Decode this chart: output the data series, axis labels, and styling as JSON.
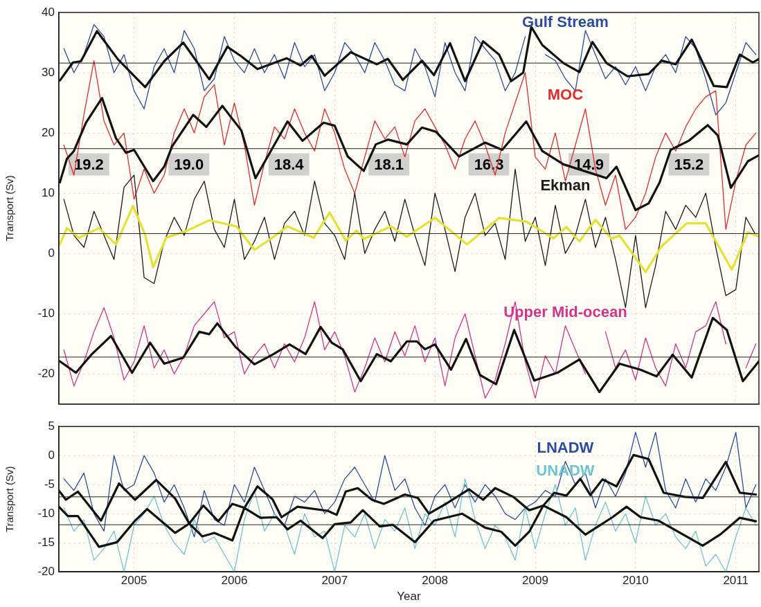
{
  "chart_data": [
    {
      "type": "line",
      "ylabel": "Transport (Sv)",
      "xlim": [
        2004.25,
        2011.23
      ],
      "xticks": [
        {
          "value": 2005,
          "label": null
        },
        {
          "value": 2006,
          "label": null
        },
        {
          "value": 2007,
          "label": null
        },
        {
          "value": 2008,
          "label": null
        },
        {
          "value": 2009,
          "label": null
        },
        {
          "value": 2010,
          "label": null
        },
        {
          "value": 2011,
          "label": null
        }
      ],
      "ylim": [
        -25,
        40
      ],
      "yticks": [
        -20,
        -10,
        0,
        10,
        20,
        30,
        40
      ],
      "tick_labels": "y",
      "grid": true,
      "ref_lines": [
        {
          "axis": "y",
          "value": 31.6
        },
        {
          "axis": "y",
          "value": 17.4
        },
        {
          "axis": "y",
          "value": 3.3
        },
        {
          "axis": "y",
          "value": -17.2
        }
      ],
      "annotations": [
        "19.2",
        "19.0",
        "18.4",
        "18.1",
        "16.3",
        "14.9",
        "15.2"
      ],
      "series": [
        {
          "name": "Gulf Stream",
          "color": "#2b4ba0",
          "x": [
            2004.3,
            2004.4,
            2004.5,
            2004.6,
            2004.7,
            2004.8,
            2004.9,
            2005.0,
            2005.1,
            2005.2,
            2005.3,
            2005.4,
            2005.5,
            2005.6,
            2005.7,
            2005.8,
            2005.9,
            2006.0,
            2006.1,
            2006.2,
            2006.3,
            2006.4,
            2006.5,
            2006.6,
            2006.7,
            2006.8,
            2006.9,
            2007.0,
            2007.1,
            2007.2,
            2007.3,
            2007.4,
            2007.5,
            2007.6,
            2007.7,
            2007.8,
            2007.9,
            2008.0,
            2008.1,
            2008.2,
            2008.3,
            2008.4,
            2008.5,
            2008.6,
            2008.7,
            2008.8,
            2008.9,
            2009.0,
            2009.1,
            2009.2,
            2009.3,
            2009.4,
            2009.5,
            2009.6,
            2009.7,
            2009.8,
            2009.9,
            2010.0,
            2010.1,
            2010.2,
            2010.3,
            2010.4,
            2010.5,
            2010.6,
            2010.7,
            2010.8,
            2010.9,
            2011.0,
            2011.1,
            2011.2
          ],
          "values": [
            34,
            30,
            33,
            38,
            36,
            30,
            33,
            27,
            24,
            31,
            34,
            30,
            37,
            34,
            27,
            29,
            36,
            32,
            30,
            34,
            30,
            33,
            29,
            35,
            31,
            33,
            27,
            30,
            35,
            33,
            30,
            35,
            32,
            28,
            27,
            34,
            31,
            26,
            35,
            30,
            27,
            36,
            34,
            32,
            27,
            30,
            36,
            null,
            33,
            32,
            29,
            27,
            37,
            33,
            29,
            31,
            28,
            31,
            27,
            31,
            33,
            30,
            36,
            34,
            29,
            23,
            25,
            30,
            35,
            33
          ]
        },
        {
          "color": "#111111",
          "x": [
            2004.26,
            2004.39,
            2004.47,
            2004.63,
            2004.84,
            2005.11,
            2005.3,
            2005.49,
            2005.75,
            2005.93,
            2006.07,
            2006.23,
            2006.52,
            2006.66,
            2006.77,
            2006.9,
            2007.16,
            2007.42,
            2007.53,
            2007.68,
            2007.87,
            2007.99,
            2008.15,
            2008.3,
            2008.48,
            2008.64,
            2008.76,
            2008.88,
            2008.96,
            2009.07,
            2009.28,
            2009.44,
            2009.57,
            2009.71,
            2009.92,
            2010.13,
            2010.26,
            2010.4,
            2010.56,
            2010.78,
            2010.91,
            2011.04,
            2011.17,
            2011.23
          ],
          "values": [
            28.7,
            31.7,
            31.9,
            36.9,
            32.2,
            27.6,
            31.9,
            35,
            28.9,
            34.3,
            32.7,
            30.6,
            32.4,
            31.2,
            32.8,
            29.5,
            33.4,
            31.4,
            32.3,
            28.8,
            32,
            29.6,
            34.9,
            28.6,
            35.2,
            33,
            28.6,
            30,
            37.6,
            34.6,
            31.6,
            30.1,
            35.1,
            31.6,
            29.4,
            29.8,
            32,
            31.4,
            35.5,
            27.8,
            27.6,
            33,
            31.7,
            32.3
          ]
        },
        {
          "name": "MOC",
          "color": "#e32b2b",
          "x": [
            2004.3,
            2004.4,
            2004.5,
            2004.6,
            2004.7,
            2004.8,
            2004.9,
            2005.0,
            2005.1,
            2005.2,
            2005.3,
            2005.4,
            2005.5,
            2005.6,
            2005.7,
            2005.8,
            2005.9,
            2006.0,
            2006.1,
            2006.2,
            2006.3,
            2006.4,
            2006.5,
            2006.6,
            2006.7,
            2006.8,
            2006.9,
            2007.0,
            2007.1,
            2007.2,
            2007.3,
            2007.4,
            2007.5,
            2007.6,
            2007.7,
            2007.8,
            2007.9,
            2008.0,
            2008.1,
            2008.2,
            2008.3,
            2008.4,
            2008.5,
            2008.6,
            2008.7,
            2008.8,
            2008.9,
            2009.0,
            2009.1,
            2009.2,
            2009.3,
            2009.4,
            2009.5,
            2009.6,
            2009.7,
            2009.8,
            2009.9,
            2010.0,
            2010.1,
            2010.2,
            2010.3,
            2010.4,
            2010.5,
            2010.6,
            2010.7,
            2010.8,
            2010.9,
            2011.0,
            2011.1,
            2011.2
          ],
          "values": [
            18,
            13,
            23,
            32,
            22,
            18,
            20,
            9,
            14,
            10,
            13,
            20,
            24,
            20,
            26,
            28,
            18,
            25,
            18,
            8,
            15,
            21,
            19,
            24,
            20,
            17,
            24,
            20,
            14,
            10,
            16,
            22,
            19,
            21,
            16,
            22,
            24,
            21,
            18,
            14,
            19,
            22,
            18,
            13,
            20,
            25,
            30,
            16,
            14,
            20,
            12,
            18,
            24,
            14,
            8,
            13,
            4,
            6,
            10,
            16,
            20,
            17,
            21,
            24,
            26,
            27,
            4,
            12,
            18,
            20
          ]
        },
        {
          "color": "#111111",
          "x": [
            2004.26,
            2004.33,
            2004.4,
            2004.52,
            2004.68,
            2004.82,
            2004.92,
            2005.0,
            2005.19,
            2005.3,
            2005.38,
            2005.59,
            2005.72,
            2005.88,
            2006.07,
            2006.21,
            2006.37,
            2006.53,
            2006.68,
            2006.89,
            2007.0,
            2007.13,
            2007.29,
            2007.41,
            2007.53,
            2007.72,
            2007.87,
            2008.01,
            2008.24,
            2008.5,
            2008.67,
            2008.91,
            2009.07,
            2009.28,
            2009.71,
            2009.81,
            2010.0,
            2010.13,
            2010.24,
            2010.35,
            2010.53,
            2010.72,
            2010.82,
            2010.95,
            2011.12,
            2011.23
          ],
          "values": [
            11.8,
            15.7,
            17,
            21.7,
            25.8,
            19.1,
            16.7,
            17.2,
            12,
            14.4,
            17.8,
            23,
            21,
            24.5,
            20.4,
            12.5,
            17.2,
            21.9,
            18.7,
            21.7,
            21.2,
            16.1,
            13.7,
            18.1,
            18.9,
            18.1,
            20.9,
            20.2,
            16.1,
            18.4,
            17.2,
            21.9,
            17,
            14.8,
            12.5,
            14.4,
            7.2,
            8.3,
            11.8,
            17.2,
            18.7,
            21.3,
            19.6,
            10.9,
            15.3,
            16.3
          ]
        },
        {
          "name": "Ekman",
          "color": "#1a1a1a",
          "x": [
            2004.3,
            2004.4,
            2004.5,
            2004.6,
            2004.7,
            2004.8,
            2004.9,
            2005.0,
            2005.1,
            2005.2,
            2005.3,
            2005.4,
            2005.5,
            2005.6,
            2005.7,
            2005.8,
            2005.9,
            2006.0,
            2006.1,
            2006.2,
            2006.3,
            2006.4,
            2006.5,
            2006.6,
            2006.7,
            2006.8,
            2006.9,
            2007.0,
            2007.1,
            2007.2,
            2007.3,
            2007.4,
            2007.5,
            2007.6,
            2007.7,
            2007.8,
            2007.9,
            2008.0,
            2008.1,
            2008.2,
            2008.3,
            2008.4,
            2008.5,
            2008.6,
            2008.7,
            2008.8,
            2008.9,
            2009.0,
            2009.1,
            2009.2,
            2009.3,
            2009.4,
            2009.5,
            2009.6,
            2009.7,
            2009.8,
            2009.9,
            2010.0,
            2010.1,
            2010.2,
            2010.3,
            2010.4,
            2010.5,
            2010.6,
            2010.7,
            2010.8,
            2010.9,
            2011.0,
            2011.1,
            2011.2
          ],
          "values": [
            9,
            3,
            1,
            7,
            3,
            -1,
            11,
            13,
            -4,
            -5,
            2,
            6,
            3,
            9,
            12,
            4,
            1,
            9,
            -1,
            2,
            6,
            -1,
            5,
            7,
            3,
            12,
            5,
            3,
            -1,
            10,
            0,
            4,
            7,
            2,
            9,
            3,
            -2,
            10,
            4,
            -3,
            6,
            10,
            3,
            5,
            -1,
            14,
            2,
            6,
            -2,
            8,
            0,
            3,
            9,
            1,
            6,
            -1,
            -9,
            3,
            -9,
            -2,
            7,
            4,
            8,
            6,
            10,
            1,
            -7,
            -6,
            6,
            3
          ]
        },
        {
          "color": "#e8e030",
          "x": [
            2004.26,
            2004.33,
            2004.45,
            2004.65,
            2004.82,
            2004.99,
            2005.11,
            2005.19,
            2005.32,
            2005.53,
            2005.75,
            2006.02,
            2006.2,
            2006.37,
            2006.53,
            2006.79,
            2006.95,
            2007.11,
            2007.22,
            2007.29,
            2007.56,
            2007.72,
            2008.0,
            2008.32,
            2008.64,
            2008.91,
            2009.18,
            2009.31,
            2009.44,
            2009.6,
            2009.76,
            2009.84,
            2010.1,
            2010.26,
            2010.51,
            2010.7,
            2010.96,
            2011.12,
            2011.23
          ],
          "values": [
            1.5,
            4.2,
            2.6,
            4.2,
            1.5,
            7.9,
            3.1,
            -2.3,
            2.6,
            3.8,
            5.5,
            4.5,
            0.6,
            2.5,
            4.5,
            2.6,
            6.8,
            2.1,
            3.8,
            2.4,
            4.5,
            2.8,
            5.9,
            1.5,
            5.9,
            5.3,
            2.5,
            4.4,
            2,
            5.6,
            2.4,
            3,
            -3.1,
            1.2,
            5,
            5,
            -2.7,
            3.5,
            2.8
          ]
        },
        {
          "name": "Upper Mid-ocean",
          "color": "#d4338a",
          "x": [
            2004.3,
            2004.4,
            2004.5,
            2004.6,
            2004.7,
            2004.8,
            2004.9,
            2005.0,
            2005.1,
            2005.2,
            2005.3,
            2005.4,
            2005.5,
            2005.6,
            2005.7,
            2005.8,
            2005.9,
            2006.0,
            2006.1,
            2006.2,
            2006.3,
            2006.4,
            2006.5,
            2006.6,
            2006.7,
            2006.8,
            2006.9,
            2007.0,
            2007.1,
            2007.2,
            2007.3,
            2007.4,
            2007.5,
            2007.6,
            2007.7,
            2007.8,
            2007.9,
            2008.0,
            2008.1,
            2008.2,
            2008.3,
            2008.4,
            2008.5,
            2008.6,
            2008.7,
            2008.8,
            2008.9,
            2009.0,
            2009.1,
            2009.2,
            2009.3,
            2009.4,
            2009.5,
            2009.6,
            2009.7,
            2009.8,
            2009.9,
            2010.0,
            2010.1,
            2010.2,
            2010.3,
            2010.4,
            2010.5,
            2010.6,
            2010.7,
            2010.8,
            2010.9,
            2011.0,
            2011.1,
            2011.2
          ],
          "values": [
            -16,
            -22,
            -18,
            -13,
            -9,
            -14,
            -21,
            -18,
            -12,
            -19,
            -16,
            -20,
            -17,
            -12,
            -10,
            -8,
            -14,
            -13,
            -20,
            -17,
            -15,
            -19,
            -15,
            -18,
            -14,
            -8,
            -16,
            -13,
            -17,
            -23,
            -19,
            -14,
            -18,
            -13,
            -17,
            -12,
            -18,
            -14,
            -22,
            -14,
            -10,
            -17,
            -24,
            -21,
            -15,
            -8,
            -18,
            -24,
            -17,
            -20,
            -12,
            -16,
            -20,
            null,
            -13,
            -19,
            -16,
            -21,
            -14,
            -19,
            -22,
            -15,
            -19,
            -13,
            -12,
            -8,
            -15,
            null,
            -19,
            -15
          ]
        },
        {
          "color": "#111111",
          "x": [
            2004.26,
            2004.42,
            2004.58,
            2004.77,
            2004.98,
            2005.16,
            2005.3,
            2005.49,
            2005.65,
            2005.75,
            2005.83,
            2006.01,
            2006.2,
            2006.39,
            2006.55,
            2006.71,
            2006.86,
            2006.97,
            2007.08,
            2007.26,
            2007.42,
            2007.56,
            2007.72,
            2007.82,
            2007.9,
            2008.0,
            2008.16,
            2008.31,
            2008.45,
            2008.61,
            2008.79,
            2008.99,
            2009.22,
            2009.44,
            2009.64,
            2009.84,
            2010.05,
            2010.21,
            2010.37,
            2010.56,
            2010.77,
            2010.91,
            2011.07,
            2011.23
          ],
          "values": [
            -17.9,
            -19.8,
            -16.7,
            -13.7,
            -19.8,
            -14.8,
            -18.3,
            -17.3,
            -13,
            -13.4,
            -11.6,
            -15.5,
            -18.4,
            -16.7,
            -15.1,
            -16.7,
            -12.2,
            -14.8,
            -15.9,
            -21.2,
            -16.7,
            -17.9,
            -14.6,
            -14.6,
            -15.9,
            -15.1,
            -19.3,
            -14.2,
            -20.2,
            -21.7,
            -12.7,
            -21.1,
            -19.8,
            -17.6,
            -23,
            -18.3,
            -19.3,
            -20.4,
            -16.8,
            -20.6,
            -10.7,
            -12.7,
            -21.2,
            -17.9
          ]
        }
      ]
    },
    {
      "type": "line",
      "xlabel": "Year",
      "ylabel": "Transport (Sv)",
      "xlim": [
        2004.25,
        2011.23
      ],
      "xticks": [
        2005,
        2006,
        2007,
        2008,
        2009,
        2010,
        2011
      ],
      "ylim": [
        -20,
        5
      ],
      "yticks": [
        -20,
        -15,
        -10,
        -5,
        0,
        5
      ],
      "grid": true,
      "ref_lines": [
        {
          "axis": "y",
          "value": -7.1
        },
        {
          "axis": "y",
          "value": -11.9
        }
      ],
      "series": [
        {
          "name": "LNADW",
          "color": "#2b4ba0",
          "x": [
            2004.3,
            2004.4,
            2004.5,
            2004.6,
            2004.7,
            2004.8,
            2004.9,
            2005.0,
            2005.1,
            2005.2,
            2005.3,
            2005.4,
            2005.5,
            2005.6,
            2005.7,
            2005.8,
            2005.9,
            2006.0,
            2006.1,
            2006.2,
            2006.3,
            2006.4,
            2006.5,
            2006.6,
            2006.7,
            2006.8,
            2006.9,
            2007.0,
            2007.1,
            2007.2,
            2007.3,
            2007.4,
            2007.5,
            2007.6,
            2007.7,
            2007.8,
            2007.9,
            2008.0,
            2008.1,
            2008.2,
            2008.3,
            2008.4,
            2008.5,
            2008.6,
            2008.7,
            2008.8,
            2008.9,
            2009.0,
            2009.1,
            2009.2,
            2009.3,
            2009.4,
            2009.5,
            2009.6,
            2009.7,
            2009.8,
            2009.9,
            2010.0,
            2010.1,
            2010.2,
            2010.3,
            2010.4,
            2010.5,
            2010.6,
            2010.7,
            2010.8,
            2010.9,
            2011.0,
            2011.1,
            2011.2
          ],
          "values": [
            -4,
            -6,
            -3,
            -10,
            -13,
            0,
            -6,
            -5,
            0,
            -3,
            -8,
            -5,
            -9,
            -14,
            -6,
            -11,
            -12,
            -5,
            -8,
            -2,
            -6,
            -10,
            -12,
            -7,
            -8,
            -6,
            -10,
            -8,
            -4,
            -2,
            -5,
            -8,
            0,
            -6,
            -4,
            -9,
            -12,
            -7,
            -5,
            -9,
            -5,
            -8,
            -5,
            -7,
            -10,
            -11,
            -9,
            -8,
            -6,
            -7,
            -1,
            -5,
            -3,
            -9,
            -4,
            -7,
            -3,
            4,
            -2,
            4,
            -6,
            -9,
            -4,
            -8,
            -4,
            -6,
            -2,
            4,
            -9,
            -5
          ]
        },
        {
          "name": "UNADW",
          "color": "#6cc5d0",
          "x": [
            2004.3,
            2004.4,
            2004.5,
            2004.6,
            2004.7,
            2004.8,
            2004.9,
            2005.0,
            2005.1,
            2005.2,
            2005.3,
            2005.4,
            2005.5,
            2005.6,
            2005.7,
            2005.8,
            2005.9,
            2006.0,
            2006.1,
            2006.2,
            2006.3,
            2006.4,
            2006.5,
            2006.6,
            2006.7,
            2006.8,
            2006.9,
            2007.0,
            2007.1,
            2007.2,
            2007.3,
            2007.4,
            2007.5,
            2007.6,
            2007.7,
            2007.8,
            2007.9,
            2008.0,
            2008.1,
            2008.2,
            2008.3,
            2008.4,
            2008.5,
            2008.6,
            2008.7,
            2008.8,
            2008.9,
            2009.0,
            2009.1,
            2009.2,
            2009.3,
            2009.4,
            2009.5,
            2009.6,
            2009.7,
            2009.8,
            2009.9,
            2010.0,
            2010.1,
            2010.2,
            2010.3,
            2010.4,
            2010.5,
            2010.6,
            2010.7,
            2010.8,
            2010.9,
            2011.0,
            2011.1,
            2011.2
          ],
          "values": [
            -9,
            -13,
            -11,
            -18,
            -16,
            -13,
            -20,
            -12,
            -10,
            -7,
            -12,
            -15,
            -17,
            -11,
            -15,
            -14,
            -17,
            -20,
            -11,
            -6,
            -13,
            -10,
            -12,
            -17,
            -10,
            -14,
            -13,
            -20,
            -12,
            -14,
            -10,
            -16,
            -11,
            -13,
            -9,
            -16,
            -10,
            -12,
            -8,
            -14,
            -4,
            -11,
            -16,
            -12,
            -14,
            -18,
            -9,
            -16,
            -10,
            -5,
            -12,
            -9,
            -18,
            -12,
            -8,
            -13,
            -10,
            -15,
            -7,
            -12,
            -10,
            -14,
            -16,
            -13,
            -19,
            -17,
            -20,
            -14,
            -9,
            -12
          ]
        },
        {
          "color": "#111111",
          "x": [
            2004.25,
            2004.32,
            2004.44,
            2004.67,
            2004.85,
            2005.01,
            2005.22,
            2005.41,
            2005.55,
            2005.69,
            2005.84,
            2005.98,
            2006.1,
            2006.23,
            2006.38,
            2006.47,
            2006.63,
            2006.93,
            2007.02,
            2007.11,
            2007.23,
            2007.37,
            2007.49,
            2007.7,
            2007.83,
            2007.94,
            2008.11,
            2008.34,
            2008.48,
            2008.6,
            2008.78,
            2008.94,
            2009.08,
            2009.19,
            2009.31,
            2009.45,
            2009.55,
            2009.67,
            2009.81,
            2009.98,
            2010.13,
            2010.28,
            2010.49,
            2010.67,
            2010.9,
            2011.04,
            2011.2
          ],
          "values": [
            -6,
            -7.6,
            -6.2,
            -11.2,
            -4.8,
            -7.6,
            -4.2,
            -7.4,
            -11.7,
            -8.6,
            -11.3,
            -8.3,
            -9,
            -5.3,
            -7.5,
            -10.6,
            -8.8,
            -9.5,
            -10.2,
            -6.2,
            -5.6,
            -7.6,
            -8.3,
            -6.7,
            -7.3,
            -10,
            -8.3,
            -5.8,
            -7.6,
            -5.6,
            -7.1,
            -9.4,
            -8.6,
            -6.4,
            -6.9,
            -4,
            -6.8,
            -4.1,
            -5.3,
            0.1,
            -0.6,
            -6.4,
            -7.1,
            -7.3,
            -1.1,
            -6.4,
            -6.7
          ]
        },
        {
          "color": "#111111",
          "x": [
            2004.25,
            2004.34,
            2004.44,
            2004.65,
            2004.83,
            2005.01,
            2005.13,
            2005.41,
            2005.55,
            2005.68,
            2005.8,
            2005.98,
            2006.1,
            2006.26,
            2006.42,
            2006.53,
            2006.66,
            2006.88,
            2007.0,
            2007.16,
            2007.28,
            2007.45,
            2007.58,
            2007.8,
            2007.99,
            2008.27,
            2008.5,
            2008.66,
            2008.8,
            2008.94,
            2009.08,
            2009.31,
            2009.5,
            2009.77,
            2009.91,
            2010.05,
            2010.23,
            2010.67,
            2010.85,
            2011.04,
            2011.2
          ],
          "values": [
            -8.8,
            -10.4,
            -10.4,
            -15.7,
            -14.9,
            -11.2,
            -9.2,
            -13.3,
            -11.7,
            -13.9,
            -13.3,
            -14.6,
            -9,
            -10.7,
            -10.6,
            -12.7,
            -11.2,
            -14.2,
            -11.8,
            -11.5,
            -9.4,
            -12.2,
            -11.9,
            -14.9,
            -11.2,
            -10,
            -12.4,
            -13.1,
            -15.5,
            -13.1,
            -8.6,
            -10.6,
            -13.6,
            -10.6,
            -8.8,
            -10.6,
            -11.2,
            -15.5,
            -13.5,
            -10.7,
            -11.3
          ]
        }
      ]
    }
  ]
}
